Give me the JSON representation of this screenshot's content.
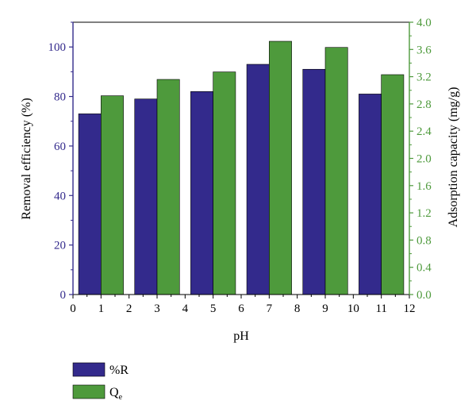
{
  "chart_data": {
    "type": "bar",
    "categories": [
      "1",
      "3",
      "5",
      "7",
      "9",
      "11"
    ],
    "x": [
      1,
      3,
      5,
      7,
      9,
      11
    ],
    "series": [
      {
        "name": "%R",
        "axis": "left",
        "color": "#332a8c",
        "values": [
          73,
          79,
          82,
          93,
          91,
          81
        ]
      },
      {
        "name": "Q",
        "name_subscript": "e",
        "axis": "right",
        "color": "#4e9a3c",
        "values": [
          2.92,
          3.16,
          3.27,
          3.72,
          3.63,
          3.23
        ]
      }
    ],
    "xlabel": "pH",
    "ylabel": "Removal efficiency (%)",
    "y2label": "Adsorption capacity (mg/g)",
    "xlim": [
      0,
      12
    ],
    "ylim": [
      0,
      110
    ],
    "y2lim": [
      0,
      4.0
    ],
    "x_ticks": [
      "0",
      "1",
      "2",
      "3",
      "4",
      "5",
      "6",
      "7",
      "8",
      "9",
      "10",
      "11",
      "12"
    ],
    "y_ticks": [
      "0",
      "20",
      "40",
      "60",
      "80",
      "100"
    ],
    "y2_ticks": [
      "0.0",
      "0.4",
      "0.8",
      "1.2",
      "1.6",
      "2.0",
      "2.4",
      "2.8",
      "3.2",
      "3.6",
      "4.0"
    ],
    "left_axis_color": "#332a8c",
    "right_axis_color": "#4e9a3c",
    "grid": false,
    "legend_position": "bottom-left"
  }
}
